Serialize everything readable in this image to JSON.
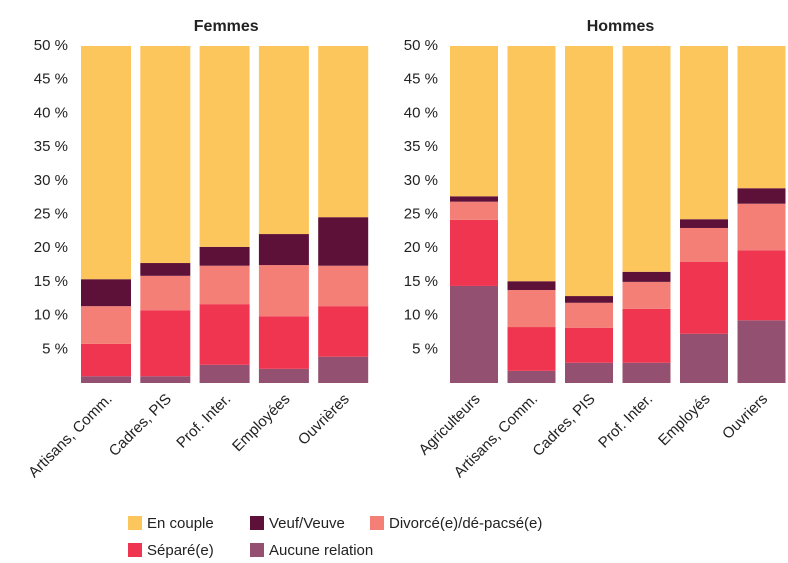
{
  "chart_data": [
    {
      "type": "stacked_bar",
      "title": "Femmes",
      "categories": [
        "Artisans, Comm.",
        "Cadres, PIS",
        "Prof. Inter.",
        "Employées",
        "Ouvrières"
      ],
      "series": [
        {
          "name": "Aucune relation",
          "color": "#945070",
          "values": [
            1.0,
            1.0,
            2.7,
            2.1,
            3.9
          ]
        },
        {
          "name": "Séparé(e)",
          "color": "#ef3550",
          "values": [
            4.8,
            9.8,
            9.0,
            7.8,
            7.5
          ]
        },
        {
          "name": "Divorcé(e)/dé-pacsé(e)",
          "color": "#f47f77",
          "values": [
            5.6,
            5.1,
            5.7,
            7.6,
            6.0
          ]
        },
        {
          "name": "Veuf/Veuve",
          "color": "#5e1138",
          "values": [
            4.0,
            1.9,
            2.8,
            4.6,
            7.2
          ]
        },
        {
          "name": "En couple",
          "color": "#fdc65c",
          "values": [
            34.6,
            32.2,
            29.8,
            27.9,
            25.4
          ]
        }
      ],
      "ylim": [
        0,
        50
      ],
      "yticks": [
        {
          "value": 5,
          "label": "5 %"
        },
        {
          "value": 10,
          "label": "10 %"
        },
        {
          "value": 15,
          "label": "15 %"
        },
        {
          "value": 20,
          "label": "20 %"
        },
        {
          "value": 25,
          "label": "25 %"
        },
        {
          "value": 30,
          "label": "30 %"
        },
        {
          "value": 35,
          "label": "35 %"
        },
        {
          "value": 40,
          "label": "40 %"
        },
        {
          "value": 45,
          "label": "45 %"
        },
        {
          "value": 50,
          "label": "50 %"
        }
      ]
    },
    {
      "type": "stacked_bar",
      "title": "Hommes",
      "categories": [
        "Agriculteurs",
        "Artisans, Comm.",
        "Cadres, PIS",
        "Prof. Inter.",
        "Employés",
        "Ouvriers"
      ],
      "series": [
        {
          "color": "#945070",
          "values": [
            14.4,
            1.8,
            3.0,
            3.0,
            7.3,
            9.3
          ]
        },
        {
          "color": "#ef3550",
          "values": [
            9.8,
            6.5,
            5.2,
            8.0,
            10.7,
            10.4
          ]
        },
        {
          "color": "#f47f77",
          "values": [
            2.7,
            5.5,
            3.7,
            4.0,
            5.0,
            6.9
          ]
        },
        {
          "color": "#5e1138",
          "values": [
            0.8,
            1.3,
            1.0,
            1.5,
            1.3,
            2.3
          ]
        },
        {
          "color": "#fdc65c",
          "values": [
            22.3,
            34.9,
            37.1,
            33.5,
            25.7,
            21.1
          ]
        }
      ],
      "ylim": [
        0,
        50
      ],
      "yticks": [
        {
          "value": 5,
          "label": "5 %"
        },
        {
          "value": 10,
          "label": "10 %"
        },
        {
          "value": 15,
          "label": "15 %"
        },
        {
          "value": 20,
          "label": "20 %"
        },
        {
          "value": 25,
          "label": "25 %"
        },
        {
          "value": 30,
          "label": "30 %"
        },
        {
          "value": 35,
          "label": "35 %"
        },
        {
          "value": 40,
          "label": "40 %"
        },
        {
          "value": 45,
          "label": "45 %"
        },
        {
          "value": 50,
          "label": "50 %"
        }
      ]
    }
  ]
}
